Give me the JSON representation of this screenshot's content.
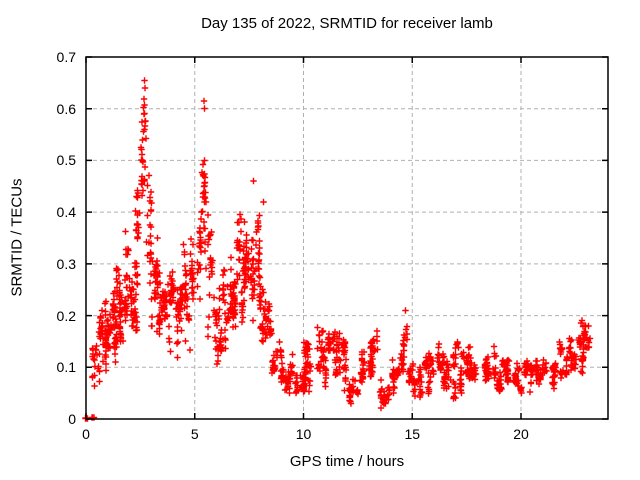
{
  "chart_data": {
    "type": "scatter",
    "title": "Day 135 of 2022, SRMTID for receiver lamb",
    "xlabel": "GPS time / hours",
    "ylabel": "SRMTID / TECUs",
    "xlim": [
      0,
      24
    ],
    "ylim": [
      0,
      0.7
    ],
    "xticks": [
      0,
      5,
      10,
      15,
      20
    ],
    "yticks": [
      0,
      0.1,
      0.2,
      0.3,
      0.4,
      0.5,
      0.6,
      0.7
    ],
    "grid": true,
    "legend": "none",
    "marker": "plus",
    "marker_color": "#ff0000",
    "grid_color": "#b0b0b0",
    "axis_color": "#000000",
    "series_name": "SRMTID",
    "peaks": [
      {
        "x": 2.7,
        "y": 0.655
      },
      {
        "x": 2.72,
        "y": 0.64
      },
      {
        "x": 5.42,
        "y": 0.615
      },
      {
        "x": 5.45,
        "y": 0.6
      },
      {
        "x": 7.7,
        "y": 0.46
      },
      {
        "x": 8.15,
        "y": 0.42
      },
      {
        "x": 14.7,
        "y": 0.21
      },
      {
        "x": 22.8,
        "y": 0.19
      }
    ],
    "envelope_bins": [
      [
        0.0,
        0.45,
        0.0,
        0.004,
        10
      ],
      [
        0.3,
        0.55,
        0.05,
        0.16,
        16
      ],
      [
        0.55,
        0.8,
        0.06,
        0.21,
        26
      ],
      [
        0.8,
        1.05,
        0.09,
        0.25,
        30
      ],
      [
        1.05,
        1.3,
        0.1,
        0.27,
        30
      ],
      [
        1.3,
        1.55,
        0.11,
        0.3,
        30
      ],
      [
        1.55,
        1.8,
        0.12,
        0.33,
        30
      ],
      [
        1.8,
        2.05,
        0.14,
        0.37,
        30
      ],
      [
        2.05,
        2.3,
        0.15,
        0.33,
        28
      ],
      [
        2.3,
        2.55,
        0.18,
        0.5,
        26
      ],
      [
        2.55,
        2.8,
        0.22,
        0.655,
        30
      ],
      [
        2.8,
        3.05,
        0.18,
        0.55,
        28
      ],
      [
        3.05,
        3.3,
        0.16,
        0.35,
        28
      ],
      [
        3.3,
        3.55,
        0.14,
        0.3,
        26
      ],
      [
        3.55,
        3.8,
        0.12,
        0.28,
        24
      ],
      [
        3.8,
        4.05,
        0.1,
        0.3,
        24
      ],
      [
        4.05,
        4.3,
        0.08,
        0.28,
        22
      ],
      [
        4.3,
        4.55,
        0.13,
        0.34,
        24
      ],
      [
        4.55,
        4.8,
        0.12,
        0.3,
        20
      ],
      [
        4.8,
        5.05,
        0.15,
        0.35,
        20
      ],
      [
        5.05,
        5.3,
        0.2,
        0.48,
        22
      ],
      [
        5.3,
        5.55,
        0.22,
        0.615,
        26
      ],
      [
        5.55,
        5.8,
        0.12,
        0.42,
        20
      ],
      [
        5.8,
        6.05,
        0.07,
        0.24,
        18
      ],
      [
        6.05,
        6.3,
        0.1,
        0.3,
        22
      ],
      [
        6.3,
        6.55,
        0.12,
        0.32,
        24
      ],
      [
        6.55,
        6.8,
        0.14,
        0.35,
        26
      ],
      [
        6.8,
        7.05,
        0.15,
        0.38,
        26
      ],
      [
        7.05,
        7.3,
        0.15,
        0.4,
        26
      ],
      [
        7.3,
        7.55,
        0.17,
        0.43,
        26
      ],
      [
        7.55,
        7.8,
        0.18,
        0.46,
        26
      ],
      [
        7.8,
        8.05,
        0.14,
        0.42,
        24
      ],
      [
        8.05,
        8.3,
        0.1,
        0.42,
        22
      ],
      [
        8.3,
        8.55,
        0.09,
        0.24,
        20
      ],
      [
        8.55,
        8.8,
        0.07,
        0.17,
        20
      ],
      [
        8.8,
        9.05,
        0.06,
        0.15,
        20
      ],
      [
        9.05,
        9.55,
        0.05,
        0.13,
        34
      ],
      [
        9.55,
        10.05,
        0.04,
        0.1,
        34
      ],
      [
        10.05,
        10.55,
        0.05,
        0.18,
        36
      ],
      [
        10.55,
        11.05,
        0.05,
        0.2,
        36
      ],
      [
        11.05,
        11.55,
        0.05,
        0.18,
        36
      ],
      [
        11.55,
        12.05,
        0.04,
        0.2,
        36
      ],
      [
        12.05,
        12.55,
        0.03,
        0.1,
        30
      ],
      [
        12.55,
        13.05,
        0.04,
        0.13,
        30
      ],
      [
        13.05,
        13.55,
        0.05,
        0.17,
        32
      ],
      [
        13.55,
        14.05,
        0.02,
        0.12,
        30
      ],
      [
        14.05,
        14.55,
        0.04,
        0.12,
        30
      ],
      [
        14.55,
        14.85,
        0.07,
        0.21,
        18
      ],
      [
        14.85,
        15.55,
        0.04,
        0.12,
        40
      ],
      [
        15.55,
        16.05,
        0.04,
        0.13,
        32
      ],
      [
        16.05,
        16.55,
        0.05,
        0.15,
        32
      ],
      [
        16.55,
        17.05,
        0.04,
        0.14,
        32
      ],
      [
        17.05,
        17.55,
        0.05,
        0.16,
        32
      ],
      [
        17.55,
        18.05,
        0.05,
        0.15,
        32
      ],
      [
        18.05,
        18.55,
        0.04,
        0.13,
        32
      ],
      [
        18.55,
        19.05,
        0.05,
        0.14,
        32
      ],
      [
        19.05,
        19.55,
        0.05,
        0.13,
        32
      ],
      [
        19.55,
        20.05,
        0.04,
        0.12,
        32
      ],
      [
        20.05,
        20.55,
        0.05,
        0.13,
        32
      ],
      [
        20.55,
        21.05,
        0.04,
        0.12,
        30
      ],
      [
        21.05,
        21.55,
        0.05,
        0.13,
        30
      ],
      [
        21.55,
        22.05,
        0.06,
        0.15,
        30
      ],
      [
        22.05,
        22.45,
        0.07,
        0.16,
        24
      ],
      [
        22.45,
        22.85,
        0.08,
        0.19,
        30
      ],
      [
        22.85,
        23.2,
        0.1,
        0.19,
        24
      ]
    ]
  }
}
